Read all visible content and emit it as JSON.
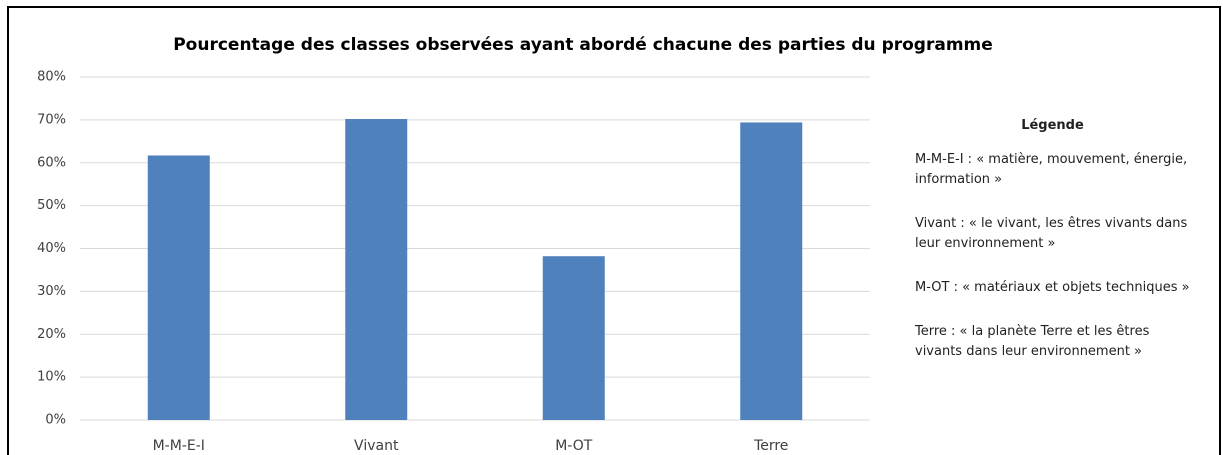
{
  "chart_data": {
    "type": "bar",
    "title": "Pourcentage des classes observées ayant abordé chacune des parties du programme",
    "categories": [
      "M-M-E-I",
      "Vivant",
      "M-OT",
      "Terre"
    ],
    "values": [
      61.7,
      70.2,
      38.2,
      69.4
    ],
    "color": "#4f81bd",
    "ylim": [
      0,
      80
    ],
    "yticks": [
      {
        "value": 0,
        "label": "0%"
      },
      {
        "value": 10,
        "label": "10%"
      },
      {
        "value": 20,
        "label": "20%"
      },
      {
        "value": 30,
        "label": "30%"
      },
      {
        "value": 40,
        "label": "40%"
      },
      {
        "value": 50,
        "label": "50%"
      },
      {
        "value": 60,
        "label": "60%"
      },
      {
        "value": 70,
        "label": "70%"
      },
      {
        "value": 80,
        "label": "80%"
      }
    ],
    "grid": true,
    "side_legend": {
      "title": "Légende",
      "items": [
        "M-M-E-I : « matière, mouvement, énergie, information »",
        "Vivant : « le vivant, les êtres vivants dans leur environnement »",
        "M-OT : « matériaux et objets techniques »",
        "Terre : « la planète Terre et les êtres vivants dans leur environnement »"
      ]
    }
  }
}
